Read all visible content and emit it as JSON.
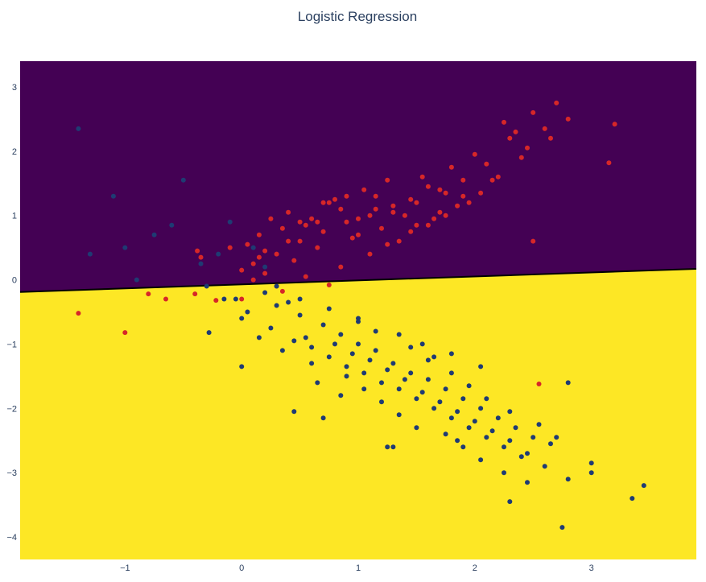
{
  "chart_data": {
    "type": "scatter",
    "title": "Logistic Regression",
    "xlabel": "",
    "ylabel": "",
    "xlim": [
      -1.9,
      3.9
    ],
    "ylim": [
      -4.35,
      3.4
    ],
    "x_ticks": [
      -1,
      0,
      1,
      2,
      3
    ],
    "y_ticks": [
      -4,
      -3,
      -2,
      -1,
      0,
      1,
      2,
      3
    ],
    "grid": false,
    "legend": "none",
    "decision_boundary": {
      "type": "line",
      "x": [
        -1.9,
        3.9
      ],
      "y": [
        -0.19,
        0.17
      ]
    },
    "colors": {
      "region_above": "#440154",
      "region_below": "#fde725",
      "boundary_line": "#000000",
      "class_red": "#d62728",
      "class_blue": "#1f3b73"
    },
    "series": [
      {
        "values_description": "red class points",
        "x": [
          -1.4,
          -1.0,
          -0.8,
          -0.65,
          -0.4,
          -0.38,
          -0.22,
          0.0,
          0.2,
          0.35,
          0.75,
          2.55,
          0.05,
          0.15,
          0.25,
          0.4,
          0.55,
          0.7,
          0.85,
          1.0,
          1.15,
          1.3,
          1.45,
          1.6,
          1.75,
          1.9,
          2.1,
          2.3,
          2.5,
          2.7,
          0.1,
          0.3,
          0.5,
          0.7,
          0.9,
          1.1,
          1.3,
          1.5,
          1.7,
          1.9,
          2.2,
          2.4,
          2.6,
          0.2,
          0.45,
          0.65,
          0.95,
          1.2,
          1.4,
          1.65,
          1.85,
          2.05,
          0.35,
          0.6,
          0.8,
          1.05,
          1.25,
          1.55,
          1.8,
          2.0,
          2.25,
          2.45,
          2.65,
          2.8,
          3.15,
          3.2,
          2.35,
          0.0,
          0.3,
          0.55,
          0.85,
          1.1,
          1.35,
          1.6,
          -0.35,
          -0.1,
          0.1,
          0.4,
          0.65,
          0.9,
          1.15,
          1.45,
          1.7,
          1.95,
          2.15,
          2.5,
          0.15,
          0.5,
          0.75,
          1.0,
          1.25,
          1.5,
          1.75
        ],
        "y": [
          -0.52,
          -0.82,
          -0.22,
          -0.3,
          -0.22,
          0.45,
          -0.32,
          -0.3,
          0.1,
          -0.18,
          -0.08,
          -1.62,
          0.55,
          0.7,
          0.95,
          1.05,
          0.85,
          1.2,
          1.1,
          0.95,
          1.3,
          1.15,
          1.25,
          1.45,
          1.35,
          1.55,
          1.8,
          2.2,
          2.6,
          2.75,
          0.25,
          0.4,
          0.6,
          0.75,
          0.9,
          1.0,
          1.05,
          1.2,
          1.4,
          1.3,
          1.6,
          1.9,
          2.35,
          0.45,
          0.3,
          0.5,
          0.65,
          0.8,
          1.0,
          0.95,
          1.15,
          1.35,
          0.8,
          0.95,
          1.25,
          1.4,
          1.55,
          1.6,
          1.75,
          1.95,
          2.45,
          2.05,
          2.2,
          2.5,
          1.82,
          2.42,
          2.3,
          0.15,
          -0.1,
          0.05,
          0.2,
          0.4,
          0.6,
          0.85,
          0.35,
          0.5,
          0.0,
          0.6,
          0.9,
          1.3,
          1.1,
          0.75,
          1.05,
          1.2,
          1.55,
          0.6,
          0.35,
          0.9,
          1.2,
          0.7,
          0.55,
          0.85,
          1.0
        ]
      },
      {
        "values_description": "blue class points",
        "x": [
          -1.4,
          -1.3,
          -1.1,
          -1.0,
          -0.9,
          -0.75,
          -0.6,
          -0.5,
          -0.35,
          -0.2,
          -0.1,
          -0.05,
          0.1,
          0.2,
          0.3,
          0.0,
          -0.3,
          -0.15,
          0.05,
          0.25,
          0.45,
          0.6,
          0.75,
          0.9,
          1.05,
          1.2,
          1.35,
          1.5,
          1.65,
          1.8,
          1.95,
          2.1,
          2.25,
          2.4,
          2.6,
          2.8,
          3.0,
          3.35,
          3.45,
          2.75,
          0.3,
          0.5,
          0.7,
          0.85,
          1.0,
          1.15,
          1.3,
          1.45,
          1.6,
          1.75,
          1.9,
          2.05,
          2.2,
          2.35,
          2.5,
          2.65,
          0.2,
          0.4,
          0.55,
          0.8,
          0.95,
          1.1,
          1.25,
          1.4,
          1.55,
          1.7,
          1.85,
          2.0,
          2.15,
          2.3,
          2.45,
          0.15,
          0.35,
          0.6,
          0.9,
          1.05,
          1.2,
          1.35,
          1.5,
          1.65,
          1.8,
          1.95,
          2.1,
          2.3,
          2.55,
          2.7,
          3.0,
          0.0,
          0.45,
          0.65,
          0.85,
          1.0,
          1.15,
          1.3,
          1.45,
          1.6,
          1.75,
          1.9,
          2.05,
          2.25,
          2.45,
          -0.28,
          0.7,
          1.25,
          1.85,
          2.3,
          2.8,
          0.5,
          0.75,
          1.0,
          1.35,
          1.55,
          1.8,
          2.05
        ],
        "y": [
          2.35,
          0.4,
          1.3,
          0.5,
          0.0,
          0.7,
          0.85,
          1.55,
          0.25,
          0.4,
          0.9,
          -0.3,
          0.5,
          0.2,
          -0.1,
          -0.6,
          -0.1,
          -0.3,
          -0.5,
          -0.75,
          -0.95,
          -1.05,
          -1.2,
          -1.35,
          -1.45,
          -1.6,
          -1.7,
          -1.85,
          -2.0,
          -2.15,
          -2.3,
          -2.45,
          -2.6,
          -2.75,
          -2.9,
          -3.1,
          -3.0,
          -3.4,
          -3.2,
          -3.85,
          -0.4,
          -0.55,
          -0.7,
          -0.85,
          -1.0,
          -1.1,
          -1.3,
          -1.45,
          -1.55,
          -1.7,
          -1.85,
          -2.0,
          -2.15,
          -2.3,
          -2.45,
          -2.55,
          -0.2,
          -0.35,
          -0.9,
          -1.0,
          -1.15,
          -1.25,
          -1.4,
          -1.55,
          -1.75,
          -1.9,
          -2.05,
          -2.2,
          -2.35,
          -2.5,
          -2.7,
          -0.9,
          -1.1,
          -1.3,
          -1.5,
          -1.7,
          -1.9,
          -2.1,
          -2.3,
          -1.2,
          -1.45,
          -1.65,
          -1.85,
          -2.05,
          -2.25,
          -2.45,
          -2.85,
          -1.35,
          -2.05,
          -1.6,
          -1.8,
          -0.6,
          -0.8,
          -2.6,
          -1.05,
          -1.25,
          -2.4,
          -2.6,
          -2.8,
          -3.0,
          -3.15,
          -0.82,
          -2.15,
          -2.6,
          -2.5,
          -3.45,
          -1.6,
          -0.3,
          -0.45,
          -0.65,
          -0.85,
          -1.0,
          -1.15,
          -1.35
        ]
      }
    ]
  }
}
